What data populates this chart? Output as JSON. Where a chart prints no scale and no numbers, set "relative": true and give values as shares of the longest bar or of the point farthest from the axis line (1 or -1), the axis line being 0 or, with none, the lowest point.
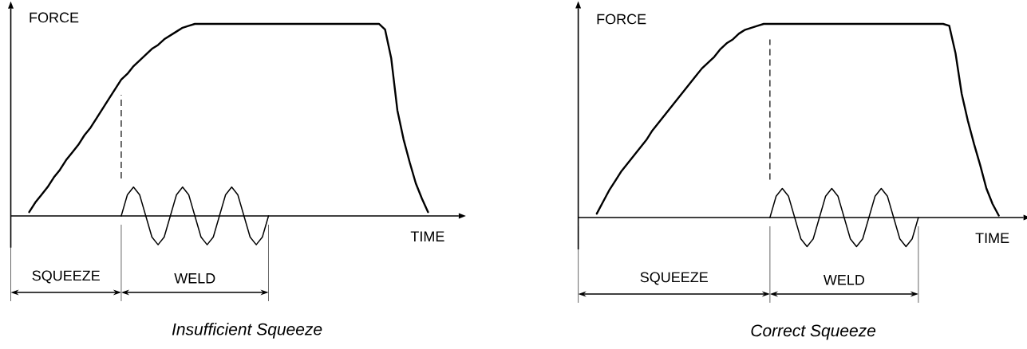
{
  "chart_data": [
    {
      "type": "line",
      "title": "Insufficient Squeeze",
      "xlabel": "TIME",
      "ylabel": "FORCE",
      "relative": true,
      "annotations": [
        "SQUEEZE",
        "WELD"
      ],
      "categories": [
        null,
        null,
        null,
        null,
        null,
        null,
        null,
        null,
        null,
        null,
        null,
        null,
        null,
        null,
        null,
        null,
        null,
        null,
        null,
        null,
        null,
        null,
        null,
        null,
        null,
        null,
        null,
        null,
        null,
        null,
        null,
        null,
        null,
        null,
        null,
        null,
        null,
        null,
        null,
        null,
        null,
        null,
        null,
        null,
        null,
        null,
        null,
        null,
        null,
        null,
        null,
        null,
        null,
        null,
        null,
        null,
        null,
        null,
        null,
        null,
        null,
        null,
        null,
        null,
        null,
        null,
        null,
        null,
        null,
        null,
        null,
        null,
        null,
        null
      ],
      "series": [
        {
          "color": "#000000",
          "values": [
            null,
            null,
            null,
            0.02,
            0.07,
            0.11,
            0.15,
            0.2,
            0.24,
            0.29,
            0.33,
            0.37,
            0.42,
            0.46,
            0.51,
            0.56,
            0.61,
            0.66,
            0.71,
            0.74,
            0.78,
            0.81,
            0.84,
            0.87,
            0.89,
            0.92,
            0.94,
            0.96,
            0.98,
            0.99,
            1,
            1,
            1,
            1,
            1,
            1,
            1,
            1,
            1,
            1,
            1,
            1,
            1,
            1,
            1,
            1,
            1,
            1,
            1,
            1,
            1,
            1,
            1,
            1,
            1,
            1,
            1,
            1,
            1,
            1,
            1,
            0.97,
            0.82,
            0.55,
            0.4,
            0.28,
            0.17,
            0.09,
            0.02,
            null,
            null,
            null,
            null,
            null
          ]
        },
        {
          "color": "#000000",
          "values": [
            null,
            null,
            null,
            null,
            null,
            null,
            null,
            null,
            null,
            null,
            null,
            null,
            null,
            null,
            null,
            null,
            null,
            null,
            0,
            0.11,
            0.15,
            0.11,
            0,
            -0.11,
            -0.15,
            -0.11,
            0,
            0.11,
            0.15,
            0.11,
            0,
            -0.11,
            -0.15,
            -0.11,
            0,
            0.11,
            0.15,
            0.11,
            0,
            -0.11,
            -0.15,
            -0.11,
            0,
            null,
            null,
            null,
            null,
            null,
            null,
            null,
            null,
            null,
            null,
            null,
            null,
            null,
            null,
            null,
            null,
            null,
            null,
            null,
            null,
            null,
            null,
            null,
            null,
            null,
            null,
            null,
            null,
            null,
            null,
            null
          ]
        }
      ]
    },
    {
      "type": "line",
      "title": "Correct Squeeze",
      "xlabel": "TIME",
      "ylabel": "FORCE",
      "relative": true,
      "annotations": [
        "SQUEEZE",
        "WELD"
      ],
      "categories": [
        null,
        null,
        null,
        null,
        null,
        null,
        null,
        null,
        null,
        null,
        null,
        null,
        null,
        null,
        null,
        null,
        null,
        null,
        null,
        null,
        null,
        null,
        null,
        null,
        null,
        null,
        null,
        null,
        null,
        null,
        null,
        null,
        null,
        null,
        null,
        null,
        null,
        null,
        null,
        null,
        null,
        null,
        null,
        null,
        null,
        null,
        null,
        null,
        null,
        null,
        null,
        null,
        null,
        null,
        null,
        null,
        null,
        null,
        null,
        null,
        null,
        null,
        null,
        null,
        null,
        null,
        null,
        null,
        null,
        null,
        null,
        null,
        null
      ],
      "series": [
        {
          "color": "#000000",
          "values": [
            null,
            null,
            null,
            0.02,
            0.08,
            0.14,
            0.19,
            0.24,
            0.28,
            0.32,
            0.36,
            0.4,
            0.45,
            0.49,
            0.53,
            0.57,
            0.61,
            0.65,
            0.69,
            0.73,
            0.77,
            0.8,
            0.83,
            0.87,
            0.9,
            0.92,
            0.95,
            0.97,
            0.98,
            0.99,
            1,
            1,
            1,
            1,
            1,
            1,
            1,
            1,
            1,
            1,
            1,
            1,
            1,
            1,
            1,
            1,
            1,
            1,
            1,
            1,
            1,
            1,
            1,
            1,
            1,
            1,
            1,
            1,
            1,
            1,
            0.99,
            0.85,
            0.64,
            0.5,
            0.38,
            0.27,
            0.15,
            0.07,
            0.01,
            null,
            null,
            null,
            null
          ]
        },
        {
          "color": "#000000",
          "values": [
            null,
            null,
            null,
            null,
            null,
            null,
            null,
            null,
            null,
            null,
            null,
            null,
            null,
            null,
            null,
            null,
            null,
            null,
            null,
            null,
            null,
            null,
            null,
            null,
            null,
            null,
            null,
            null,
            null,
            null,
            null,
            0,
            0.11,
            0.15,
            0.11,
            0,
            -0.11,
            -0.15,
            -0.11,
            0,
            0.11,
            0.15,
            0.11,
            0,
            -0.11,
            -0.15,
            -0.11,
            0,
            0.11,
            0.15,
            0.11,
            0,
            -0.11,
            -0.15,
            -0.11,
            0,
            null,
            null,
            null,
            null,
            null,
            null,
            null,
            null,
            null,
            null,
            null,
            null,
            null,
            null,
            null,
            null,
            null
          ]
        }
      ]
    }
  ]
}
